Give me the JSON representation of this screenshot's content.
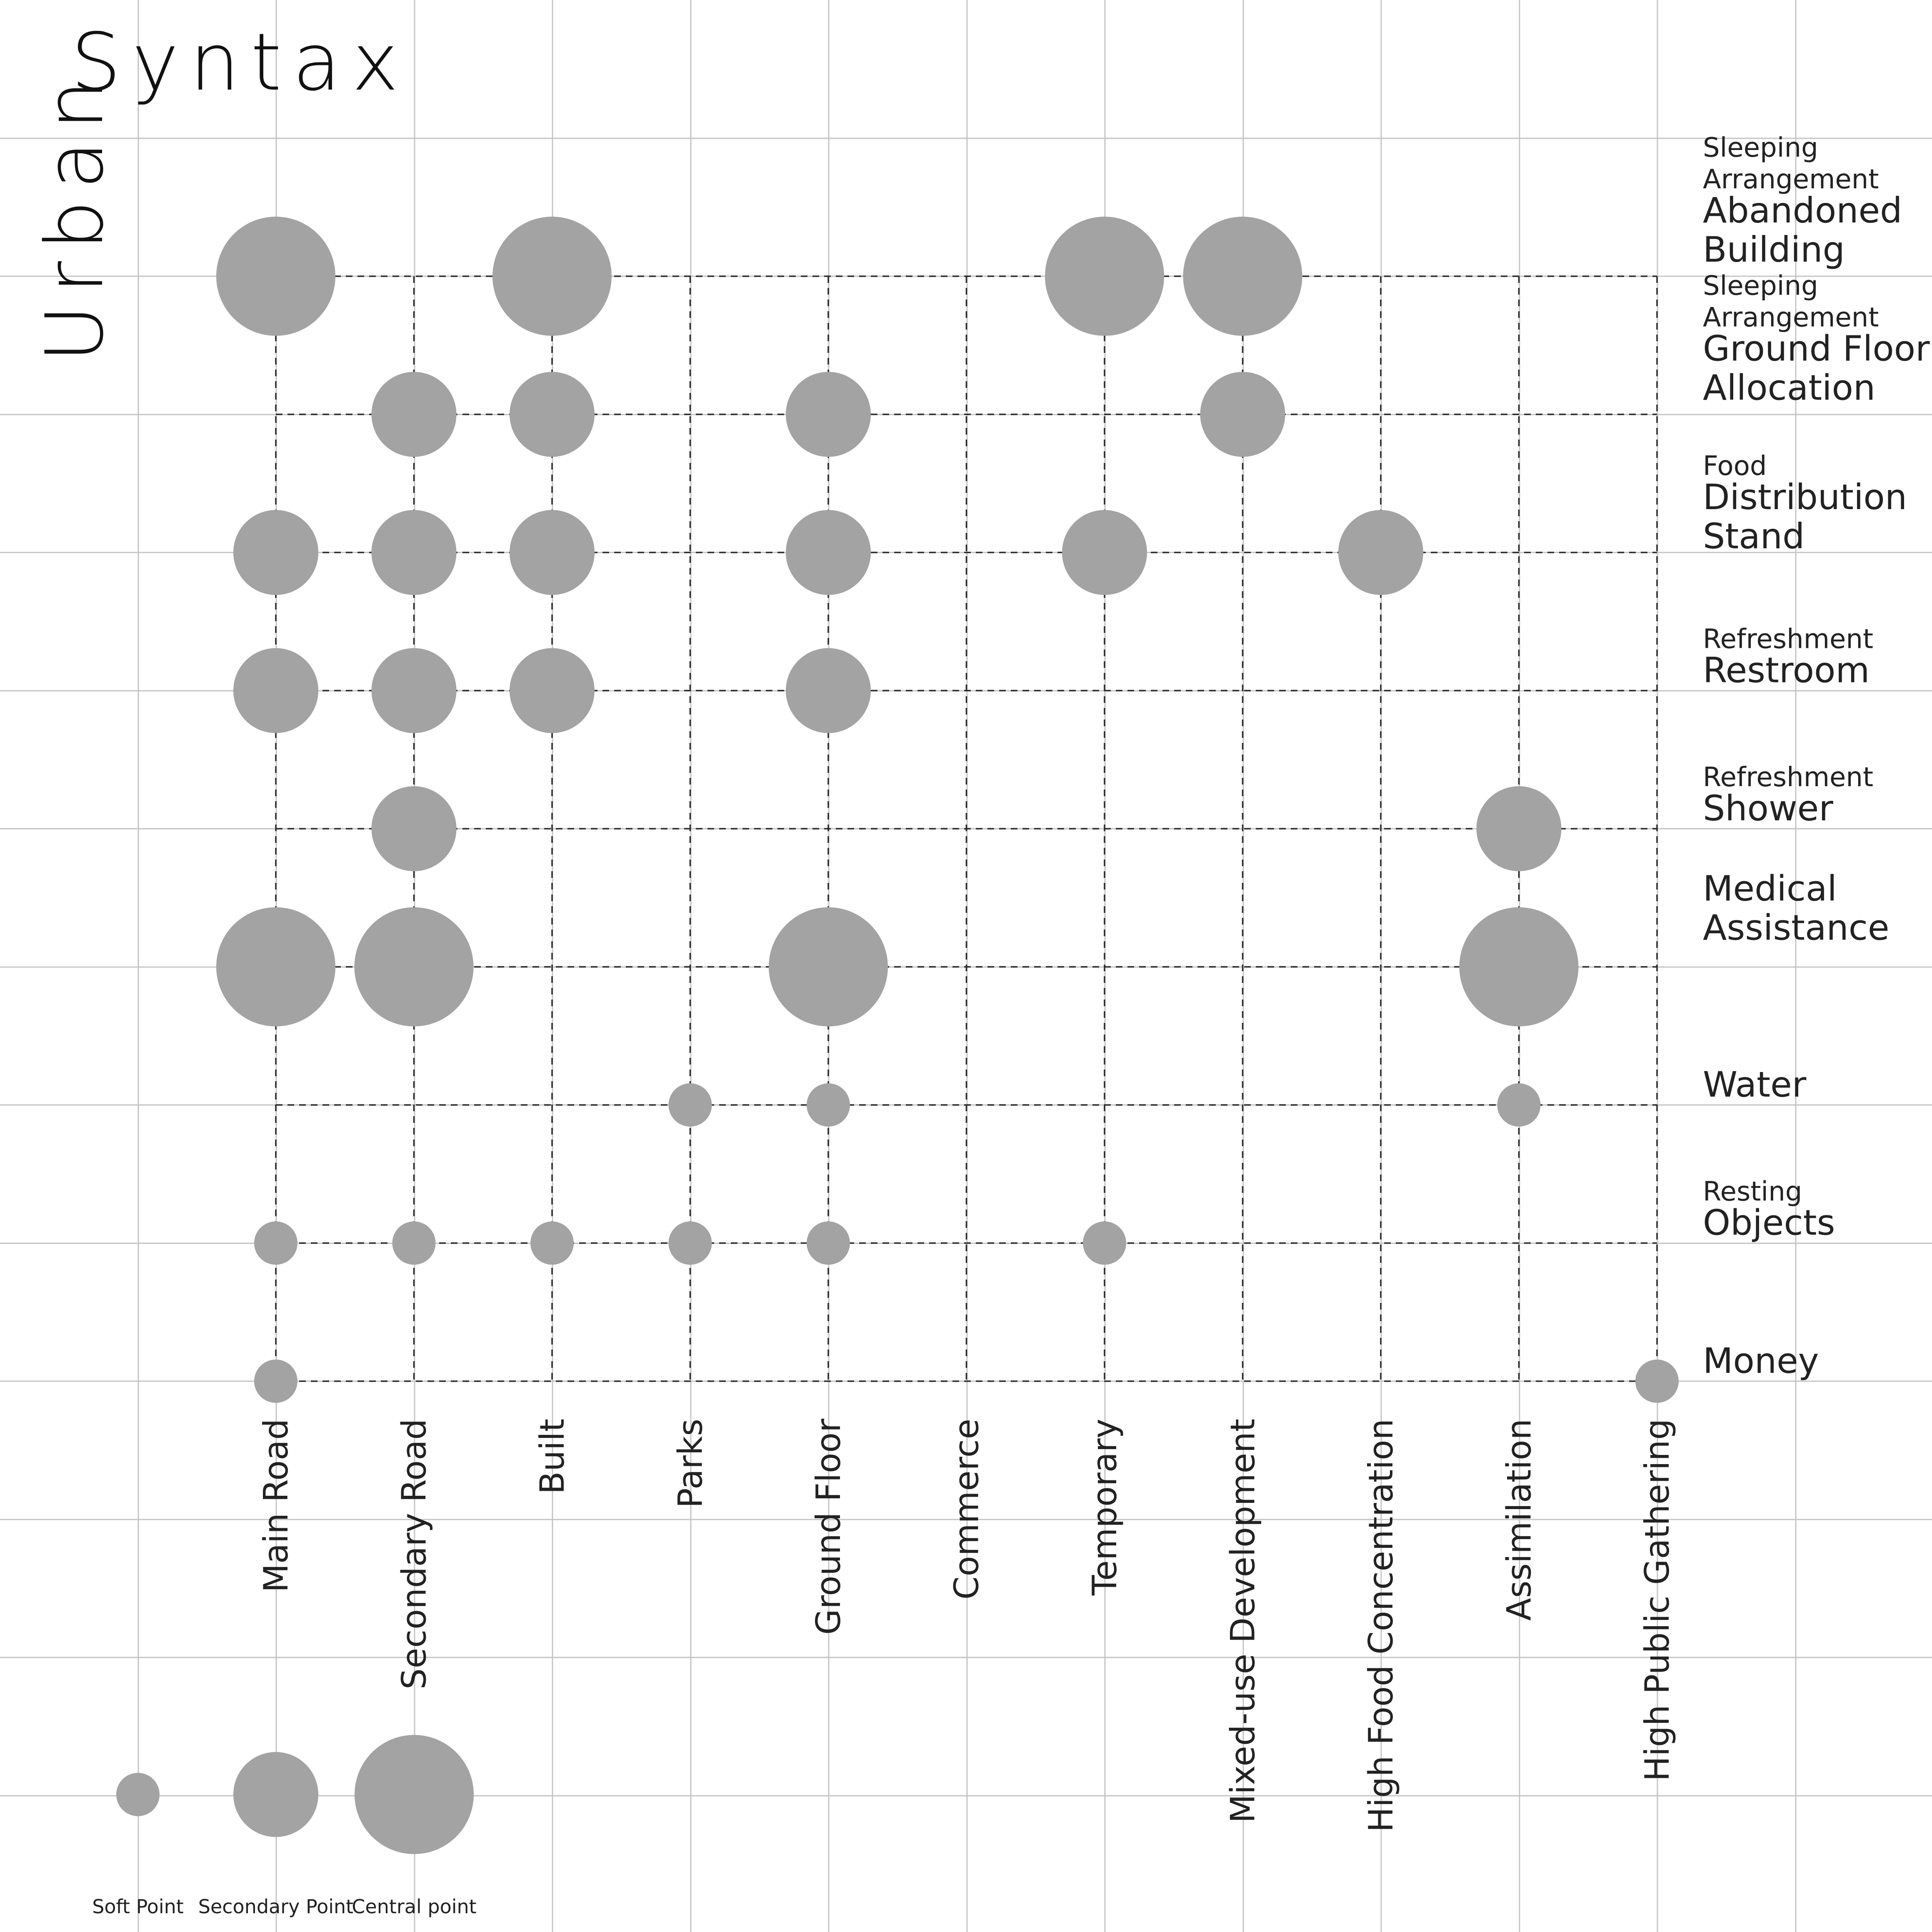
{
  "title": {
    "word1": "Urban",
    "word2": "Syntax"
  },
  "chart_data": {
    "type": "scatter",
    "grid": true,
    "columns": [
      "Main Road",
      "Secondary Road",
      "Built",
      "Parks",
      "Ground Floor",
      "Commerce",
      "Temporary",
      "Mixed-use Development",
      "High Food Concentration",
      "Assimilation",
      "High Public Gathering"
    ],
    "rows": [
      {
        "category": "Sleeping Arrangement",
        "name": "Abandoned Building"
      },
      {
        "category": "Sleeping Arrangement",
        "name": "Ground Floor Allocation"
      },
      {
        "category": "Food",
        "name": "Distribution Stand"
      },
      {
        "category": "Refreshment",
        "name": "Restroom"
      },
      {
        "category": "Refreshment",
        "name": "Shower"
      },
      {
        "category": "",
        "name": "Medical Assistance"
      },
      {
        "category": "",
        "name": "Water"
      },
      {
        "category": "Resting",
        "name": "Objects"
      },
      {
        "category": "",
        "name": "Money"
      }
    ],
    "point_levels": [
      "Soft Point",
      "Secondary Point",
      "Central point"
    ],
    "points": [
      {
        "row": 0,
        "col": 0,
        "level": "Central point"
      },
      {
        "row": 0,
        "col": 2,
        "level": "Central point"
      },
      {
        "row": 0,
        "col": 6,
        "level": "Central point"
      },
      {
        "row": 0,
        "col": 7,
        "level": "Central point"
      },
      {
        "row": 1,
        "col": 1,
        "level": "Secondary Point"
      },
      {
        "row": 1,
        "col": 2,
        "level": "Secondary Point"
      },
      {
        "row": 1,
        "col": 4,
        "level": "Secondary Point"
      },
      {
        "row": 1,
        "col": 7,
        "level": "Secondary Point"
      },
      {
        "row": 2,
        "col": 0,
        "level": "Secondary Point"
      },
      {
        "row": 2,
        "col": 1,
        "level": "Secondary Point"
      },
      {
        "row": 2,
        "col": 2,
        "level": "Secondary Point"
      },
      {
        "row": 2,
        "col": 4,
        "level": "Secondary Point"
      },
      {
        "row": 2,
        "col": 6,
        "level": "Secondary Point"
      },
      {
        "row": 2,
        "col": 8,
        "level": "Secondary Point"
      },
      {
        "row": 3,
        "col": 0,
        "level": "Secondary Point"
      },
      {
        "row": 3,
        "col": 1,
        "level": "Secondary Point"
      },
      {
        "row": 3,
        "col": 2,
        "level": "Secondary Point"
      },
      {
        "row": 3,
        "col": 4,
        "level": "Secondary Point"
      },
      {
        "row": 4,
        "col": 1,
        "level": "Secondary Point"
      },
      {
        "row": 4,
        "col": 9,
        "level": "Secondary Point"
      },
      {
        "row": 5,
        "col": 0,
        "level": "Central point"
      },
      {
        "row": 5,
        "col": 1,
        "level": "Central point"
      },
      {
        "row": 5,
        "col": 4,
        "level": "Central point"
      },
      {
        "row": 5,
        "col": 9,
        "level": "Central point"
      },
      {
        "row": 6,
        "col": 3,
        "level": "Soft Point"
      },
      {
        "row": 6,
        "col": 4,
        "level": "Soft Point"
      },
      {
        "row": 6,
        "col": 9,
        "level": "Soft Point"
      },
      {
        "row": 7,
        "col": 0,
        "level": "Soft Point"
      },
      {
        "row": 7,
        "col": 1,
        "level": "Soft Point"
      },
      {
        "row": 7,
        "col": 2,
        "level": "Soft Point"
      },
      {
        "row": 7,
        "col": 3,
        "level": "Soft Point"
      },
      {
        "row": 7,
        "col": 4,
        "level": "Soft Point"
      },
      {
        "row": 7,
        "col": 6,
        "level": "Soft Point"
      },
      {
        "row": 8,
        "col": 0,
        "level": "Soft Point"
      },
      {
        "row": 8,
        "col": 10,
        "level": "Soft Point"
      }
    ]
  },
  "legend": {
    "items": [
      {
        "label": "Soft Point",
        "level": "Soft Point"
      },
      {
        "label": "Secondary Point",
        "level": "Secondary Point"
      },
      {
        "label": "Central point",
        "level": "Central point"
      }
    ]
  },
  "colors": {
    "dot": "#a3a3a3",
    "grid": "#c4c4c4",
    "dash": "#2a2a2a"
  }
}
